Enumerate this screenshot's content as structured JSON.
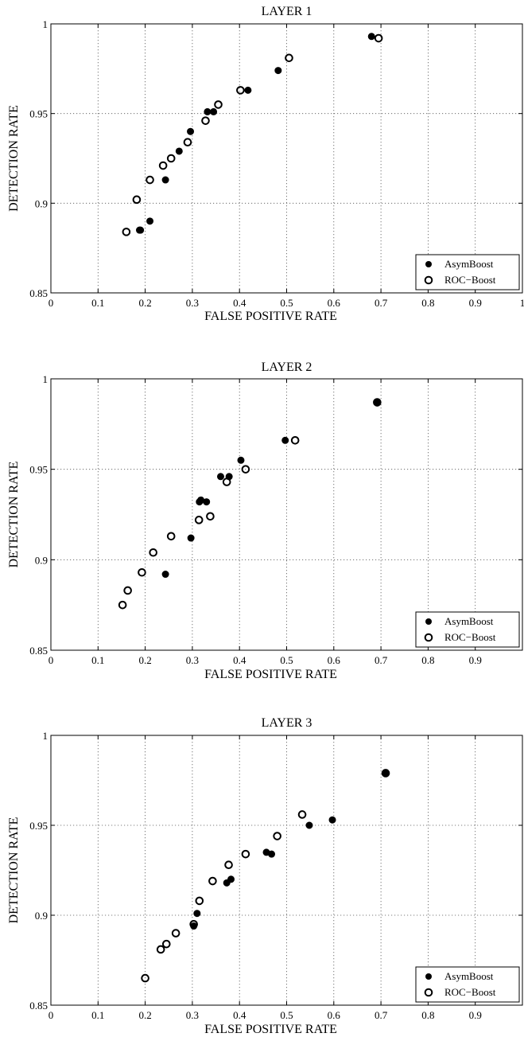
{
  "chart_data": [
    {
      "type": "scatter",
      "title": "LAYER 1",
      "xlabel": "FALSE POSITIVE RATE",
      "ylabel": "DETECTION RATE",
      "xlim": [
        0,
        1
      ],
      "ylim": [
        0.85,
        1
      ],
      "xticks": [
        "0",
        "0.1",
        "0.2",
        "0.3",
        "0.4",
        "0.5",
        "0.6",
        "0.7",
        "0.8",
        "0.9",
        "1"
      ],
      "yticks": [
        "0.85",
        "0.9",
        "0.95",
        "1"
      ],
      "grid": true,
      "legend_position": "bottom-right",
      "series": [
        {
          "name": "AsymBoost",
          "marker": "filled",
          "x": [
            0.19,
            0.188,
            0.21,
            0.243,
            0.272,
            0.296,
            0.332,
            0.345,
            0.418,
            0.482,
            0.68
          ],
          "y": [
            0.885,
            0.885,
            0.89,
            0.913,
            0.929,
            0.94,
            0.951,
            0.951,
            0.963,
            0.974,
            0.993
          ]
        },
        {
          "name": "ROC−Boost",
          "marker": "open",
          "x": [
            0.16,
            0.182,
            0.21,
            0.238,
            0.255,
            0.29,
            0.328,
            0.355,
            0.402,
            0.505,
            0.695
          ],
          "y": [
            0.884,
            0.902,
            0.913,
            0.921,
            0.925,
            0.934,
            0.946,
            0.955,
            0.963,
            0.981,
            0.992
          ]
        }
      ]
    },
    {
      "type": "scatter",
      "title": "LAYER 2",
      "xlabel": "FALSE POSITIVE RATE",
      "ylabel": "DETECTION RATE",
      "xlim": [
        0,
        1
      ],
      "ylim": [
        0.85,
        1
      ],
      "xticks": [
        "0",
        "0.1",
        "0.2",
        "0.3",
        "0.4",
        "0.5",
        "0.6",
        "0.7",
        "0.8",
        "0.9"
      ],
      "yticks": [
        "0.85",
        "0.9",
        "0.95",
        "1"
      ],
      "grid": true,
      "legend_position": "bottom-right",
      "series": [
        {
          "name": "AsymBoost",
          "marker": "filled",
          "x": [
            0.243,
            0.297,
            0.315,
            0.318,
            0.33,
            0.36,
            0.378,
            0.403,
            0.497,
            0.692
          ],
          "y": [
            0.892,
            0.912,
            0.932,
            0.933,
            0.932,
            0.946,
            0.946,
            0.955,
            0.966,
            0.987
          ]
        },
        {
          "name": "ROC−Boost",
          "marker": "open",
          "x": [
            0.152,
            0.163,
            0.193,
            0.217,
            0.255,
            0.314,
            0.338,
            0.373,
            0.413,
            0.518,
            0.692
          ],
          "y": [
            0.875,
            0.883,
            0.893,
            0.904,
            0.913,
            0.922,
            0.924,
            0.943,
            0.95,
            0.966,
            0.987
          ]
        }
      ]
    },
    {
      "type": "scatter",
      "title": "LAYER 3",
      "xlabel": "FALSE POSITIVE RATE",
      "ylabel": "DETECTION RATE",
      "xlim": [
        0,
        1
      ],
      "ylim": [
        0.85,
        1
      ],
      "xticks": [
        "0",
        "0.1",
        "0.2",
        "0.3",
        "0.4",
        "0.5",
        "0.6",
        "0.7",
        "0.8",
        "0.9"
      ],
      "yticks": [
        "0.85",
        "0.9",
        "0.95",
        "1"
      ],
      "grid": true,
      "legend_position": "bottom-right",
      "series": [
        {
          "name": "AsymBoost",
          "marker": "filled",
          "x": [
            0.303,
            0.31,
            0.373,
            0.382,
            0.457,
            0.468,
            0.548,
            0.597,
            0.71
          ],
          "y": [
            0.894,
            0.901,
            0.918,
            0.92,
            0.935,
            0.934,
            0.95,
            0.953,
            0.979
          ]
        },
        {
          "name": "ROC−Boost",
          "marker": "open",
          "x": [
            0.2,
            0.233,
            0.245,
            0.265,
            0.303,
            0.315,
            0.343,
            0.377,
            0.413,
            0.48,
            0.533,
            0.71
          ],
          "y": [
            0.865,
            0.881,
            0.884,
            0.89,
            0.895,
            0.908,
            0.919,
            0.928,
            0.934,
            0.944,
            0.956,
            0.979
          ]
        }
      ]
    }
  ]
}
